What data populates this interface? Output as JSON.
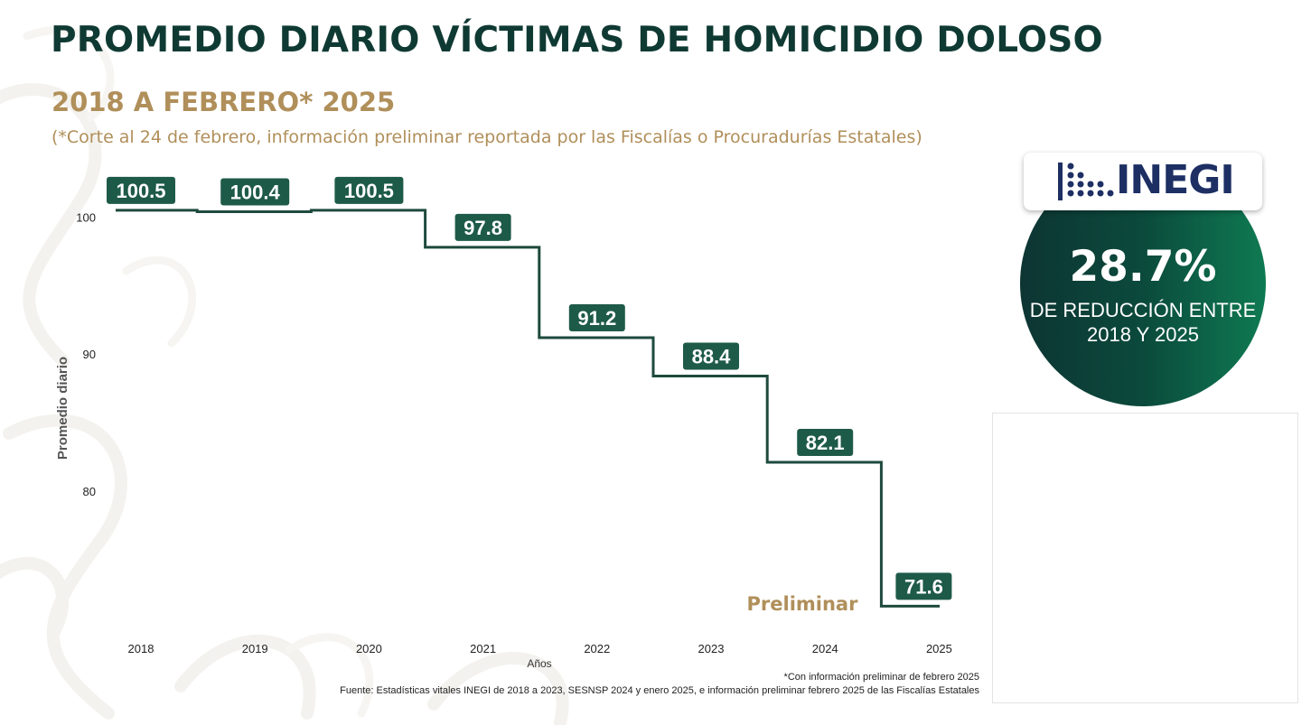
{
  "header": {
    "title": "PROMEDIO DIARIO VÍCTIMAS DE HOMICIDIO DOLOSO",
    "subtitle": "2018 A FEBRERO* 2025",
    "note": "(*Corte al 24 de febrero, información preliminar reportada por las Fiscalías o Procuradurías Estatales)"
  },
  "colors": {
    "title": "#0f3a33",
    "accent_gold": "#b08f5a",
    "line": "#1e4a3d",
    "label_box": "#1e5a48"
  },
  "chart_data": {
    "type": "line",
    "step": true,
    "categories": [
      "2018",
      "2019",
      "2020",
      "2021",
      "2022",
      "2023",
      "2024",
      "2025"
    ],
    "values": [
      100.5,
      100.4,
      100.5,
      97.8,
      91.2,
      88.4,
      82.1,
      71.6
    ],
    "data_labels": [
      "100.5",
      "100.4",
      "100.5",
      "97.8",
      "91.2",
      "88.4",
      "82.1",
      "71.6"
    ],
    "xlabel": "Años",
    "ylabel": "Promedio diario",
    "yticks": [
      "80",
      "90",
      "100"
    ],
    "ylim": [
      70.7,
      103
    ],
    "grid": false,
    "annotation": "Preliminar"
  },
  "highlight": {
    "value": "28.7%",
    "caption_line1": "DE REDUCCIÓN ENTRE",
    "caption_line2": "2018 Y 2025",
    "logo_text": "INEGI"
  },
  "footer": {
    "footnote": "*Con información preliminar de febrero 2025",
    "source": "Fuente: Estadísticas vitales INEGI de 2018 a 2023, SESNSP 2024 y enero 2025, e información preliminar febrero 2025 de las Fiscalías Estatales"
  }
}
